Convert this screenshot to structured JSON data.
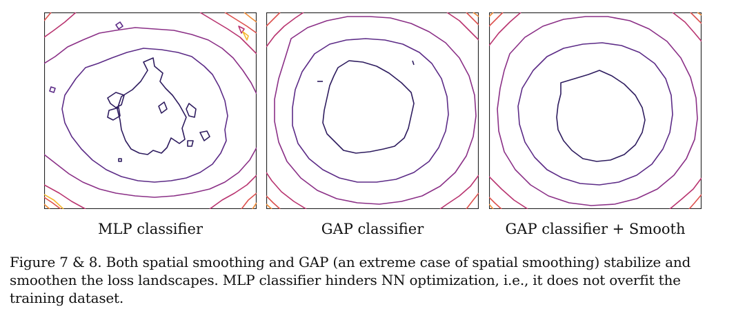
{
  "panels": [
    {
      "label": "MLP classifier"
    },
    {
      "label": "GAP classifier"
    },
    {
      "label": "GAP classifier + Smooth"
    }
  ],
  "caption": "Figure 7 & 8. Both spatial smoothing and GAP (an extreme case of spatial smoothing) stabilize and smoothen the loss landscapes. MLP classifier hinders NN optimization, i.e., it does not overfit the training dataset.",
  "colors": {
    "level1": "#2d1b5e",
    "level2": "#5b2a86",
    "level3": "#8a2f86",
    "level4": "#b8336f",
    "level5": "#dc4f4c",
    "level6": "#ef8a35",
    "level7": "#f5b62e"
  }
}
